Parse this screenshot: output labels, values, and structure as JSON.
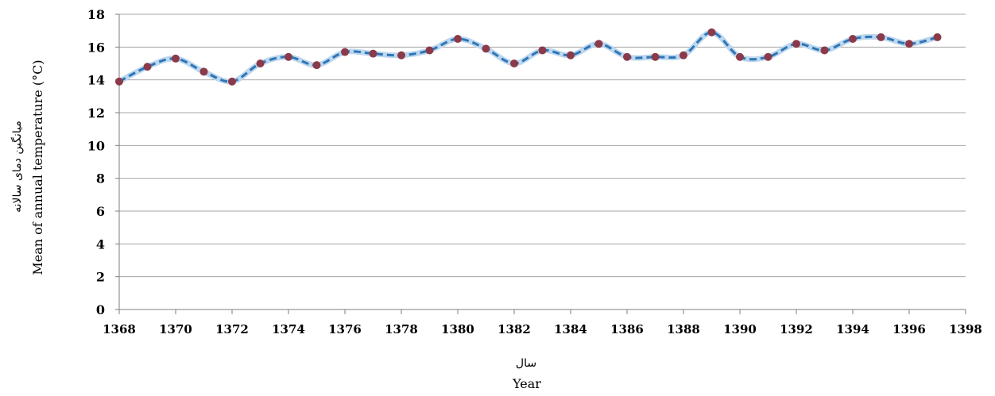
{
  "chart_data": {
    "type": "line",
    "title": "",
    "xlabel_fa": "سال",
    "xlabel": "Year",
    "ylabel_fa": "میانگین دمای سالانه",
    "ylabel": "Mean of annual temperature (°C)",
    "xlim": [
      1368,
      1398
    ],
    "ylim": [
      0,
      18
    ],
    "x_ticks": [
      1368,
      1370,
      1372,
      1374,
      1376,
      1378,
      1380,
      1382,
      1384,
      1386,
      1388,
      1390,
      1392,
      1394,
      1396,
      1398
    ],
    "y_ticks": [
      0,
      2,
      4,
      6,
      8,
      10,
      12,
      14,
      16,
      18
    ],
    "grid": "horizontal",
    "series": [
      {
        "line_color": "#2e75b6",
        "marker_color": "#8b3a4a",
        "points": [
          {
            "x": 1368,
            "y": 13.9
          },
          {
            "x": 1369,
            "y": 14.8
          },
          {
            "x": 1370,
            "y": 15.3
          },
          {
            "x": 1371,
            "y": 14.5
          },
          {
            "x": 1372,
            "y": 13.9
          },
          {
            "x": 1373,
            "y": 15.0
          },
          {
            "x": 1374,
            "y": 15.4
          },
          {
            "x": 1375,
            "y": 14.9
          },
          {
            "x": 1376,
            "y": 15.7
          },
          {
            "x": 1377,
            "y": 15.6
          },
          {
            "x": 1378,
            "y": 15.5
          },
          {
            "x": 1379,
            "y": 15.8
          },
          {
            "x": 1380,
            "y": 16.5
          },
          {
            "x": 1381,
            "y": 15.9
          },
          {
            "x": 1382,
            "y": 15.0
          },
          {
            "x": 1383,
            "y": 15.8
          },
          {
            "x": 1384,
            "y": 15.5
          },
          {
            "x": 1385,
            "y": 16.2
          },
          {
            "x": 1386,
            "y": 15.4
          },
          {
            "x": 1387,
            "y": 15.4
          },
          {
            "x": 1388,
            "y": 15.5
          },
          {
            "x": 1389,
            "y": 16.9
          },
          {
            "x": 1390,
            "y": 15.4
          },
          {
            "x": 1391,
            "y": 15.4
          },
          {
            "x": 1392,
            "y": 16.2
          },
          {
            "x": 1393,
            "y": 15.8
          },
          {
            "x": 1394,
            "y": 16.5
          },
          {
            "x": 1395,
            "y": 16.6
          },
          {
            "x": 1396,
            "y": 16.2
          },
          {
            "x": 1397,
            "y": 16.6
          }
        ]
      }
    ]
  }
}
